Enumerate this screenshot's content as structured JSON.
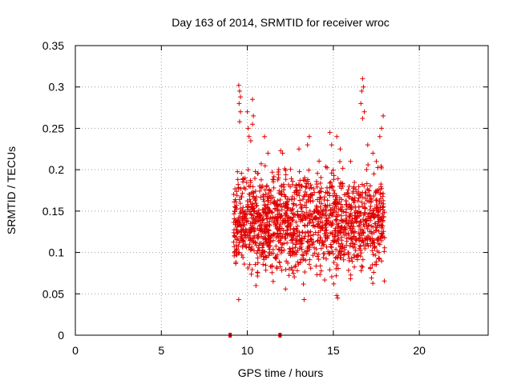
{
  "chart_data": {
    "type": "scatter",
    "title": "Day 163 of 2014, SRMTID for receiver wroc",
    "xlabel": "GPS time / hours",
    "ylabel": "SRMTID / TECUs",
    "xlim": [
      0,
      24
    ],
    "ylim": [
      0,
      0.35
    ],
    "xticks": [
      0,
      5,
      10,
      15,
      20
    ],
    "xtick_labels": [
      "0",
      "5",
      "10",
      "15",
      "20"
    ],
    "yticks": [
      0,
      0.05,
      0.1,
      0.15,
      0.2,
      0.25,
      0.3,
      0.35
    ],
    "ytick_labels": [
      "0",
      "0.05",
      "0.1",
      "0.15",
      "0.2",
      "0.25",
      "0.3",
      "0.35"
    ],
    "grid": true,
    "marker": "+",
    "color": "#e00000",
    "zero_markers_x": [
      9.0,
      11.9
    ],
    "series": [
      {
        "name": "SRMTID",
        "x_range": [
          9.0,
          18.0
        ],
        "points": [
          [
            9.5,
            0.302
          ],
          [
            9.55,
            0.295
          ],
          [
            9.6,
            0.288
          ],
          [
            9.52,
            0.28
          ],
          [
            9.6,
            0.27
          ],
          [
            9.55,
            0.258
          ],
          [
            10.0,
            0.27
          ],
          [
            10.05,
            0.25
          ],
          [
            10.1,
            0.24
          ],
          [
            10.2,
            0.235
          ],
          [
            10.3,
            0.285
          ],
          [
            10.35,
            0.265
          ],
          [
            10.3,
            0.255
          ],
          [
            11.0,
            0.24
          ],
          [
            11.2,
            0.22
          ],
          [
            12.05,
            0.22
          ],
          [
            13.0,
            0.225
          ],
          [
            13.5,
            0.23
          ],
          [
            13.6,
            0.24
          ],
          [
            14.8,
            0.245
          ],
          [
            14.9,
            0.23
          ],
          [
            15.2,
            0.24
          ],
          [
            15.4,
            0.225
          ],
          [
            16.0,
            0.21
          ],
          [
            16.7,
            0.31
          ],
          [
            16.75,
            0.3
          ],
          [
            16.65,
            0.295
          ],
          [
            16.6,
            0.28
          ],
          [
            16.8,
            0.27
          ],
          [
            16.7,
            0.262
          ],
          [
            17.0,
            0.23
          ],
          [
            17.3,
            0.22
          ],
          [
            17.5,
            0.21
          ],
          [
            17.9,
            0.265
          ],
          [
            17.8,
            0.25
          ],
          [
            17.7,
            0.24
          ],
          [
            9.5,
            0.043
          ],
          [
            13.3,
            0.043
          ],
          [
            15.2,
            0.048
          ],
          [
            15.25,
            0.045
          ],
          [
            10.5,
            0.06
          ],
          [
            11.5,
            0.065
          ]
        ]
      }
    ]
  }
}
